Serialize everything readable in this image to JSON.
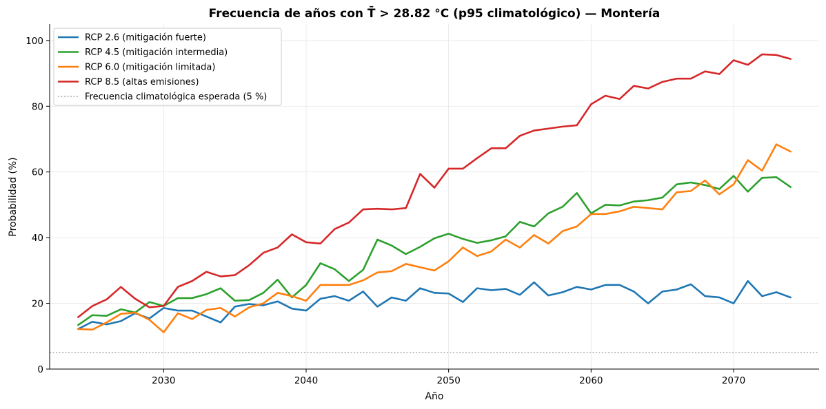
{
  "chart_data": {
    "type": "line",
    "title": "Frecuencia de años con T̄ > 28.82 °C (p95 climatológico) — Montería",
    "xlabel": "Año",
    "ylabel": "Probabilidad (%)",
    "xlim": [
      2022,
      2076
    ],
    "ylim": [
      0,
      105
    ],
    "xticks": [
      2030,
      2040,
      2050,
      2060,
      2070
    ],
    "yticks": [
      0,
      20,
      40,
      60,
      80,
      100
    ],
    "grid": true,
    "legend_position": "top-left",
    "x": [
      2024,
      2025,
      2026,
      2027,
      2028,
      2029,
      2030,
      2031,
      2032,
      2033,
      2034,
      2035,
      2036,
      2037,
      2038,
      2039,
      2040,
      2041,
      2042,
      2043,
      2044,
      2045,
      2046,
      2047,
      2048,
      2049,
      2050,
      2051,
      2052,
      2053,
      2054,
      2055,
      2056,
      2057,
      2058,
      2059,
      2060,
      2061,
      2062,
      2063,
      2064,
      2065,
      2066,
      2067,
      2068,
      2069,
      2070,
      2071,
      2072,
      2073,
      2074
    ],
    "series": [
      {
        "name": "RCP 2.6 (mitigación fuerte)",
        "color": "#1f77b4",
        "values": [
          12.2,
          14.4,
          13.6,
          14.6,
          17.0,
          15.4,
          18.6,
          17.8,
          17.8,
          16.0,
          14.2,
          19.0,
          19.8,
          19.4,
          20.6,
          18.4,
          17.8,
          21.4,
          22.2,
          20.8,
          23.6,
          19.0,
          21.8,
          20.8,
          24.6,
          23.2,
          23.0,
          20.4,
          24.6,
          24.0,
          24.4,
          22.6,
          26.4,
          22.4,
          23.4,
          25.0,
          24.2,
          25.6,
          25.6,
          23.6,
          20.0,
          23.6,
          24.2,
          25.8,
          22.2,
          21.8,
          20.0,
          26.8,
          22.2,
          23.4,
          21.8
        ]
      },
      {
        "name": "RCP 4.5 (mitigación intermedia)",
        "color": "#2ca02c",
        "values": [
          13.4,
          16.4,
          16.2,
          18.2,
          17.2,
          20.4,
          19.2,
          21.6,
          21.6,
          22.8,
          24.6,
          20.8,
          21.0,
          23.2,
          27.2,
          21.8,
          25.6,
          32.2,
          30.4,
          26.8,
          30.2,
          39.4,
          37.6,
          35.0,
          37.2,
          39.8,
          41.2,
          39.6,
          38.4,
          39.2,
          40.4,
          44.8,
          43.4,
          47.4,
          49.4,
          53.6,
          47.4,
          50.0,
          49.8,
          51.0,
          51.4,
          52.2,
          56.2,
          56.8,
          56.0,
          54.8,
          58.8,
          54.0,
          58.2,
          58.4,
          55.4
        ]
      },
      {
        "name": "RCP 6.0 (mitigación limitada)",
        "color": "#ff7f0e",
        "values": [
          12.2,
          12.0,
          14.2,
          16.8,
          17.2,
          15.0,
          11.2,
          17.0,
          15.2,
          18.0,
          18.6,
          16.0,
          18.8,
          20.0,
          23.2,
          22.2,
          20.8,
          25.6,
          25.6,
          25.6,
          27.0,
          29.4,
          29.8,
          32.0,
          31.0,
          30.0,
          32.8,
          37.0,
          34.4,
          35.8,
          39.4,
          37.0,
          40.8,
          38.2,
          42.0,
          43.4,
          47.2,
          47.2,
          48.0,
          49.4,
          49.0,
          48.6,
          53.8,
          54.2,
          57.4,
          53.2,
          56.2,
          63.6,
          60.4,
          68.4,
          66.2
        ]
      },
      {
        "name": "RCP 8.5 (altas emisiones)",
        "color": "#d62728",
        "values": [
          15.8,
          19.2,
          21.2,
          25.0,
          21.4,
          18.8,
          19.2,
          25.0,
          26.8,
          29.6,
          28.2,
          28.6,
          31.6,
          35.4,
          37.0,
          41.0,
          38.6,
          38.2,
          42.6,
          44.6,
          48.6,
          48.8,
          48.6,
          49.0,
          59.4,
          55.2,
          61.0,
          61.0,
          64.2,
          67.2,
          67.2,
          71.0,
          72.6,
          73.2,
          73.8,
          74.2,
          80.6,
          83.2,
          82.2,
          86.2,
          85.4,
          87.4,
          88.4,
          88.4,
          90.6,
          89.8,
          94.0,
          92.6,
          95.8,
          95.6,
          94.4
        ]
      }
    ],
    "reference_line": {
      "name": "Frecuencia climatológica esperada (5 %)",
      "value": 5,
      "color": "#999999"
    }
  }
}
